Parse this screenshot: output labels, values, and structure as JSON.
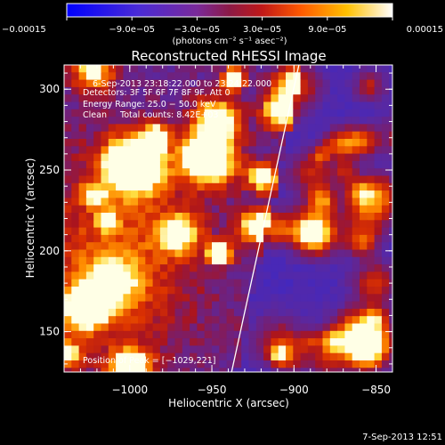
{
  "chart_data": {
    "type": "heatmap",
    "title": "Reconstructed RHESSI Image",
    "xlabel": "Heliocentric X (arcsec)",
    "ylabel": "Heliocentric Y (arcsec)",
    "xlim": [
      -1040,
      -840
    ],
    "ylim": [
      125,
      315
    ],
    "xticks": [
      -1000,
      -950,
      -900,
      -850
    ],
    "xtick_labels": [
      "−1000",
      "−950",
      "−900",
      "−850"
    ],
    "yticks": [
      150,
      200,
      250,
      300
    ],
    "ytick_labels": [
      "150",
      "200",
      "250",
      "300"
    ],
    "colorbar": {
      "range": [
        -0.00015,
        0.00015
      ],
      "tick_labels": [
        "−0.00015",
        "−9.0e−05",
        "−3.0e−05",
        "3.0e−05",
        "9.0e−05",
        "0.00015"
      ],
      "unit_text": "(photons cm⁻² s⁻¹ asec⁻²)"
    },
    "info_lines": [
      "6-Sep-2013 23:18:22.000 to 23:24:22.000",
      "Detectors: 3F 5F 6F 7F 8F 9F, Att 0",
      "Energy Range: 25.0 − 50.0 keV",
      "Clean     Total counts: 8.42E+03"
    ],
    "peak_label": "Position of Peak = [−1029,221]",
    "limb_line": [
      [
        -938,
        125
      ],
      [
        -897,
        315
      ]
    ],
    "footer_date": "7-Sep-2013 12:51",
    "colors": {
      "background": "#000000",
      "foreground": "#ffffff"
    }
  }
}
